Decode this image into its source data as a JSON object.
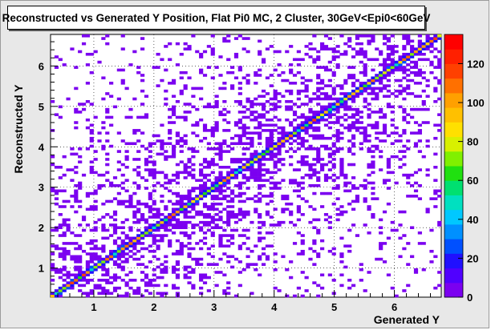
{
  "chart_data": {
    "type": "heatmap",
    "title": "Reconstructed vs Generated Y Position, Flat Pi0 MC, 2 Cluster, 30GeV<Epi0<60GeV",
    "xlabel": "Generated Y",
    "ylabel": "Reconstructed Y",
    "xlim": [
      0.28,
      6.78
    ],
    "ylim": [
      0.28,
      6.78
    ],
    "x_ticks": [
      "1",
      "2",
      "3",
      "4",
      "5",
      "6"
    ],
    "y_ticks": [
      "1",
      "2",
      "3",
      "4",
      "5",
      "6"
    ],
    "z_ticks": [
      "0",
      "20",
      "40",
      "60",
      "80",
      "100",
      "120"
    ],
    "zlim": [
      0,
      135
    ],
    "grid": true,
    "colormap": [
      "#7b00f0",
      "#5000ff",
      "#2010ff",
      "#0050ff",
      "#0090ff",
      "#00c8ff",
      "#00e0c0",
      "#00e070",
      "#20e010",
      "#80f000",
      "#d8f000",
      "#ffe000",
      "#ffc000",
      "#ffa000",
      "#ff7000",
      "#ff4000",
      "#ff2000",
      "#ff0000"
    ],
    "diagonal_peak": {
      "y_equals_x": true,
      "max_count": 135
    }
  }
}
